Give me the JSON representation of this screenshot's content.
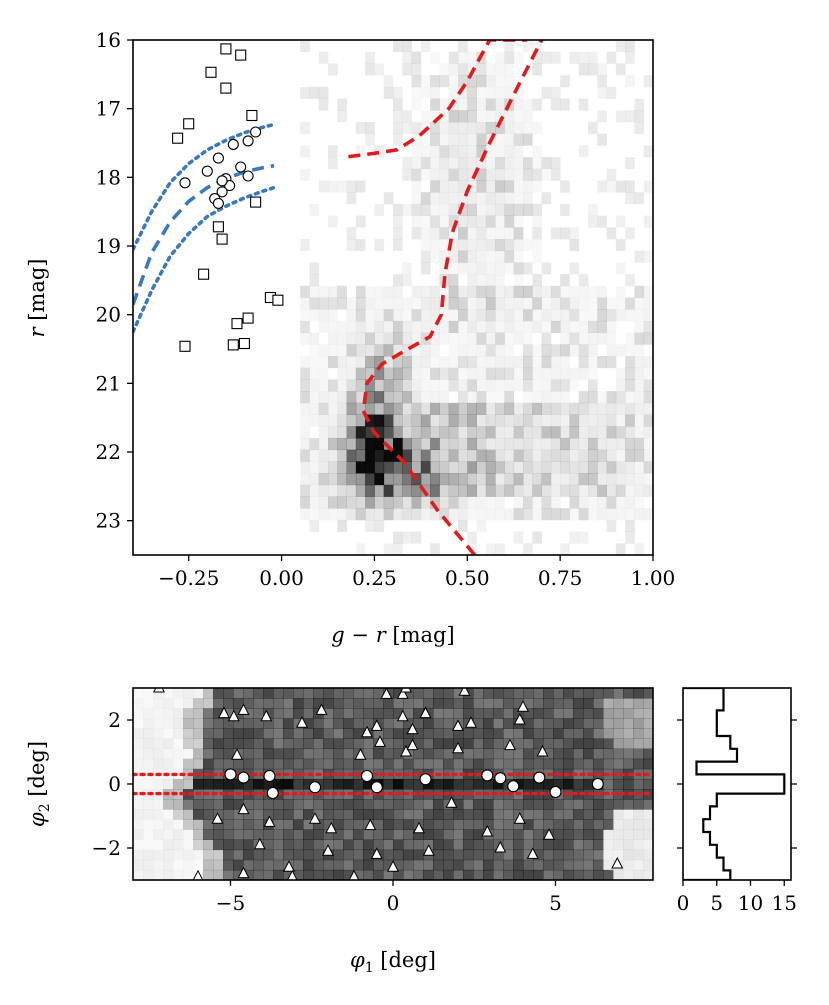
{
  "chart_data": [
    {
      "panel": "color-magnitude diagram",
      "type": "scatter",
      "xlabel_parts": [
        "g",
        " − ",
        "r",
        " [mag]"
      ],
      "ylabel_parts": [
        "r",
        " [mag]"
      ],
      "xlim": [
        -0.4,
        1.0
      ],
      "ylim": [
        23.5,
        16.0
      ],
      "xticks": [
        -0.25,
        0.0,
        0.25,
        0.5,
        0.75,
        1.0
      ],
      "xtick_labels": [
        "−0.25",
        "0.00",
        "0.25",
        "0.50",
        "0.75",
        "1.00"
      ],
      "yticks": [
        16,
        17,
        18,
        19,
        20,
        21,
        22,
        23
      ],
      "ytick_labels": [
        "16",
        "17",
        "18",
        "19",
        "20",
        "21",
        "22",
        "23"
      ],
      "background": "2D histogram (gray scale) of field star density; darkest near g−r 0.25, r 21.7–22.4",
      "series": [
        {
          "name": "candidate members (circles)",
          "marker": "circle",
          "points": [
            [
              -0.13,
              17.52
            ],
            [
              -0.09,
              17.47
            ],
            [
              -0.07,
              17.34
            ],
            [
              -0.17,
              17.72
            ],
            [
              -0.2,
              17.91
            ],
            [
              -0.15,
              18.02
            ],
            [
              -0.14,
              18.12
            ],
            [
              -0.11,
              17.85
            ],
            [
              -0.09,
              17.98
            ],
            [
              -0.16,
              18.21
            ],
            [
              -0.18,
              18.31
            ],
            [
              -0.16,
              18.05
            ],
            [
              -0.26,
              18.08
            ],
            [
              -0.17,
              18.38
            ]
          ]
        },
        {
          "name": "stars (squares)",
          "marker": "square",
          "points": [
            [
              -0.15,
              16.13
            ],
            [
              -0.11,
              16.22
            ],
            [
              -0.19,
              16.47
            ],
            [
              -0.15,
              16.7
            ],
            [
              -0.08,
              17.1
            ],
            [
              -0.25,
              17.22
            ],
            [
              -0.28,
              17.43
            ],
            [
              -0.07,
              18.36
            ],
            [
              -0.17,
              18.72
            ],
            [
              -0.16,
              18.9
            ],
            [
              -0.21,
              19.41
            ],
            [
              -0.03,
              19.75
            ],
            [
              -0.01,
              19.79
            ],
            [
              -0.09,
              20.05
            ],
            [
              -0.12,
              20.13
            ],
            [
              -0.1,
              20.42
            ],
            [
              -0.13,
              20.44
            ],
            [
              -0.26,
              20.46
            ]
          ]
        }
      ],
      "lines": [
        {
          "name": "blue isochrone",
          "color": "#3a7bbf",
          "style": "dashed",
          "points": [
            [
              -0.4,
              19.85
            ],
            [
              -0.35,
              19.1
            ],
            [
              -0.3,
              18.65
            ],
            [
              -0.25,
              18.35
            ],
            [
              -0.2,
              18.15
            ],
            [
              -0.15,
              18.02
            ],
            [
              -0.1,
              17.92
            ],
            [
              -0.05,
              17.86
            ],
            [
              -0.02,
              17.83
            ]
          ]
        },
        {
          "name": "blue upper bound",
          "color": "#3a7bbf",
          "style": "dotted",
          "points": [
            [
              -0.4,
              19.05
            ],
            [
              -0.35,
              18.5
            ],
            [
              -0.3,
              18.08
            ],
            [
              -0.25,
              17.8
            ],
            [
              -0.2,
              17.6
            ],
            [
              -0.15,
              17.46
            ],
            [
              -0.1,
              17.35
            ],
            [
              -0.05,
              17.27
            ],
            [
              -0.02,
              17.23
            ]
          ]
        },
        {
          "name": "blue lower bound",
          "color": "#3a7bbf",
          "style": "dotted",
          "points": [
            [
              -0.4,
              20.25
            ],
            [
              -0.35,
              19.65
            ],
            [
              -0.3,
              19.15
            ],
            [
              -0.25,
              18.82
            ],
            [
              -0.2,
              18.57
            ],
            [
              -0.15,
              18.42
            ],
            [
              -0.1,
              18.3
            ],
            [
              -0.05,
              18.2
            ],
            [
              -0.02,
              18.15
            ]
          ]
        },
        {
          "name": "red isochrone",
          "color": "#e41a1c",
          "style": "dashed",
          "points": [
            [
              0.52,
              23.5
            ],
            [
              0.42,
              22.85
            ],
            [
              0.33,
              22.15
            ],
            [
              0.25,
              21.72
            ],
            [
              0.22,
              21.4
            ],
            [
              0.23,
              21.0
            ],
            [
              0.27,
              20.72
            ],
            [
              0.34,
              20.5
            ],
            [
              0.4,
              20.32
            ],
            [
              0.43,
              20.0
            ],
            [
              0.44,
              19.4
            ],
            [
              0.46,
              18.8
            ],
            [
              0.5,
              18.2
            ],
            [
              0.56,
              17.5
            ],
            [
              0.62,
              16.85
            ],
            [
              0.7,
              16.0
            ]
          ]
        },
        {
          "name": "red giant branch",
          "color": "#e41a1c",
          "style": "dashed",
          "points": [
            [
              0.18,
              17.7
            ],
            [
              0.25,
              17.65
            ],
            [
              0.31,
              17.6
            ],
            [
              0.37,
              17.4
            ],
            [
              0.45,
              17.0
            ],
            [
              0.5,
              16.6
            ],
            [
              0.56,
              16.0
            ],
            [
              0.66,
              16.0
            ]
          ]
        }
      ]
    },
    {
      "panel": "sky position",
      "type": "scatter",
      "xlabel_parts": [
        "φ",
        "1",
        " [deg]"
      ],
      "ylabel_parts": [
        "φ",
        "2",
        " [deg]"
      ],
      "xlim": [
        -8,
        8
      ],
      "ylim": [
        -3,
        3
      ],
      "xticks": [
        -5,
        0,
        5
      ],
      "xtick_labels": [
        "−5",
        "0",
        "5"
      ],
      "yticks": [
        2,
        0,
        -2
      ],
      "ytick_labels": [
        "2",
        "0",
        "−2"
      ],
      "background": "2D histogram of stellar density; darkest along φ2 ≈ 0",
      "hlines": [
        {
          "y": 0.3,
          "color": "#e41a1c",
          "style": "dotted"
        },
        {
          "y": -0.3,
          "color": "#e41a1c",
          "style": "dotted"
        }
      ],
      "series": [
        {
          "name": "candidate members (circles)",
          "marker": "circle",
          "points": [
            [
              -5.0,
              0.3
            ],
            [
              -4.6,
              0.2
            ],
            [
              -3.8,
              0.25
            ],
            [
              -3.7,
              -0.28
            ],
            [
              -2.4,
              -0.1
            ],
            [
              -0.8,
              0.25
            ],
            [
              -0.5,
              -0.1
            ],
            [
              1.0,
              0.15
            ],
            [
              2.9,
              0.27
            ],
            [
              3.3,
              0.18
            ],
            [
              3.7,
              -0.07
            ],
            [
              4.5,
              0.2
            ],
            [
              5.0,
              -0.25
            ],
            [
              6.3,
              0.0
            ]
          ]
        },
        {
          "name": "field stars (triangles)",
          "marker": "triangle",
          "points": [
            [
              -7.2,
              3.0
            ],
            [
              -5.2,
              2.2
            ],
            [
              -4.6,
              2.3
            ],
            [
              -4.9,
              2.1
            ],
            [
              -3.9,
              2.1
            ],
            [
              -2.8,
              1.9
            ],
            [
              -2.2,
              2.3
            ],
            [
              -0.5,
              1.8
            ],
            [
              0.3,
              2.1
            ],
            [
              0.3,
              2.8
            ],
            [
              1.0,
              2.2
            ],
            [
              2.0,
              1.8
            ],
            [
              2.2,
              2.9
            ],
            [
              4.0,
              2.4
            ],
            [
              0.6,
              1.7
            ],
            [
              3.9,
              2.0
            ],
            [
              -0.2,
              2.8
            ],
            [
              -0.4,
              1.3
            ],
            [
              -1.0,
              0.9
            ],
            [
              0.4,
              1.0
            ],
            [
              0.6,
              1.2
            ],
            [
              2.0,
              1.1
            ],
            [
              3.6,
              1.2
            ],
            [
              4.6,
              1.0
            ],
            [
              -4.8,
              0.9
            ],
            [
              -4.6,
              -0.8
            ],
            [
              -5.4,
              -1.1
            ],
            [
              -3.8,
              -1.2
            ],
            [
              -2.4,
              -1.1
            ],
            [
              -1.9,
              -1.4
            ],
            [
              -2.0,
              -2.1
            ],
            [
              -4.1,
              -1.9
            ],
            [
              -0.7,
              -1.3
            ],
            [
              -0.5,
              -2.2
            ],
            [
              0.8,
              -1.4
            ],
            [
              1.1,
              -2.1
            ],
            [
              1.8,
              -0.6
            ],
            [
              2.9,
              -1.5
            ],
            [
              3.3,
              -2.0
            ],
            [
              3.9,
              -1.1
            ],
            [
              4.3,
              -2.2
            ],
            [
              4.8,
              -1.6
            ],
            [
              -6.0,
              -2.9
            ],
            [
              -4.6,
              -2.8
            ],
            [
              -3.2,
              -2.6
            ],
            [
              -3.1,
              -2.9
            ],
            [
              -1.2,
              -2.9
            ],
            [
              0.0,
              -2.6
            ],
            [
              6.9,
              -2.5
            ],
            [
              0.4,
              3.0
            ],
            [
              -0.8,
              1.6
            ],
            [
              2.4,
              1.9
            ]
          ]
        }
      ]
    },
    {
      "panel": "φ2 histogram",
      "type": "bar",
      "orientation": "horizontal step histogram",
      "xlim": [
        0,
        16
      ],
      "ylim": [
        -3,
        3
      ],
      "xticks": [
        0,
        5,
        10,
        15
      ],
      "xtick_labels": [
        "0",
        "5",
        "10",
        "15"
      ],
      "bin_edges": [
        -3.0,
        -2.7,
        -2.3,
        -1.9,
        -1.5,
        -1.1,
        -0.7,
        -0.3,
        0.3,
        0.7,
        1.1,
        1.5,
        1.9,
        2.3,
        2.7,
        3.0
      ],
      "counts": [
        7,
        6,
        5,
        4,
        3,
        4,
        5,
        15,
        2,
        8,
        7,
        5,
        5,
        6,
        6
      ]
    }
  ]
}
